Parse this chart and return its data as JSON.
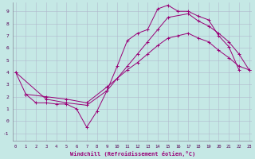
{
  "xlabel": "Windchill (Refroidissement éolien,°C)",
  "background_color": "#c5e8e5",
  "grid_color": "#b0b8cc",
  "line_color": "#990077",
  "yticks": [
    -1,
    0,
    1,
    2,
    3,
    4,
    5,
    6,
    7,
    8,
    9
  ],
  "xticks": [
    0,
    1,
    2,
    3,
    4,
    5,
    6,
    7,
    8,
    9,
    10,
    11,
    12,
    13,
    14,
    15,
    16,
    17,
    18,
    19,
    20,
    21,
    22,
    23
  ],
  "xlim": [
    -0.3,
    23.3
  ],
  "ylim": [
    -1.6,
    9.7
  ],
  "line1_x": [
    0,
    1,
    2,
    3,
    4,
    5,
    6,
    7,
    8,
    9,
    10,
    11,
    12,
    13,
    14,
    15,
    16,
    17,
    18,
    19,
    20,
    21,
    22
  ],
  "line1_y": [
    4.0,
    2.2,
    1.5,
    1.5,
    1.4,
    1.4,
    1.0,
    -0.5,
    0.8,
    2.5,
    4.5,
    6.6,
    7.2,
    7.5,
    9.2,
    9.5,
    9.0,
    9.0,
    8.6,
    8.3,
    7.0,
    6.1,
    4.2
  ],
  "line2_x": [
    0,
    3,
    5,
    7,
    9,
    10,
    11,
    12,
    13,
    14,
    15,
    17,
    18,
    19,
    20,
    21,
    22,
    23
  ],
  "line2_y": [
    4.0,
    1.8,
    1.5,
    1.3,
    2.5,
    3.5,
    4.5,
    5.5,
    6.5,
    7.5,
    8.5,
    8.8,
    8.2,
    7.8,
    7.2,
    6.5,
    5.5,
    4.2
  ],
  "line3_x": [
    1,
    3,
    5,
    7,
    9,
    10,
    11,
    12,
    13,
    14,
    15,
    16,
    17,
    18,
    19,
    20,
    21,
    22,
    23
  ],
  "line3_y": [
    2.2,
    2.0,
    1.8,
    1.5,
    2.8,
    3.5,
    4.2,
    4.8,
    5.5,
    6.2,
    6.8,
    7.0,
    7.2,
    6.8,
    6.5,
    5.8,
    5.2,
    4.5,
    4.2
  ]
}
